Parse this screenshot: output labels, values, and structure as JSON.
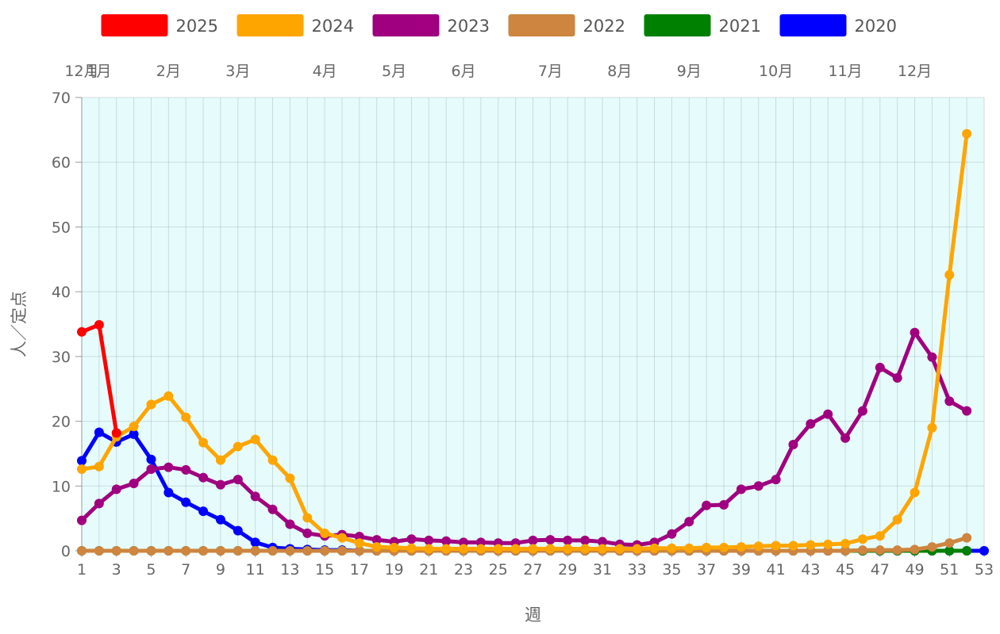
{
  "chart_data": {
    "type": "line",
    "xlabel": "週",
    "ylabel": "人／定点",
    "xlim": [
      1,
      53
    ],
    "ylim": [
      0,
      70
    ],
    "y_ticks": [
      "0",
      "10",
      "20",
      "30",
      "40",
      "50",
      "60",
      "70"
    ],
    "x_ticks": [
      "1",
      "3",
      "5",
      "7",
      "9",
      "11",
      "13",
      "15",
      "17",
      "19",
      "21",
      "23",
      "25",
      "27",
      "29",
      "31",
      "33",
      "35",
      "37",
      "39",
      "41",
      "43",
      "45",
      "47",
      "49",
      "51",
      "53"
    ],
    "months": [
      {
        "label": "12月",
        "week": 1
      },
      {
        "label": "1月",
        "week": 2
      },
      {
        "label": "2月",
        "week": 6
      },
      {
        "label": "3月",
        "week": 10
      },
      {
        "label": "4月",
        "week": 15
      },
      {
        "label": "5月",
        "week": 19
      },
      {
        "label": "6月",
        "week": 23
      },
      {
        "label": "7月",
        "week": 28
      },
      {
        "label": "8月",
        "week": 32
      },
      {
        "label": "9月",
        "week": 36
      },
      {
        "label": "10月",
        "week": 41
      },
      {
        "label": "11月",
        "week": 45
      },
      {
        "label": "12月",
        "week": 49
      }
    ],
    "grid": true,
    "legend_position": "top",
    "plot_background": "#e6fcfc",
    "series": [
      {
        "name": "2025",
        "color": "#ff0000",
        "values": [
          33.8,
          34.9,
          18.2
        ]
      },
      {
        "name": "2024",
        "color": "#ffa500",
        "values": [
          12.6,
          13.0,
          17.6,
          19.2,
          22.6,
          23.9,
          20.6,
          16.7,
          14.0,
          16.1,
          17.2,
          14.0,
          11.2,
          5.1,
          2.7,
          2.0,
          1.2,
          0.6,
          0.5,
          0.4,
          0.3,
          0.3,
          0.3,
          0.3,
          0.3,
          0.3,
          0.3,
          0.3,
          0.3,
          0.3,
          0.3,
          0.3,
          0.3,
          0.4,
          0.4,
          0.4,
          0.5,
          0.5,
          0.6,
          0.7,
          0.8,
          0.8,
          0.9,
          1.0,
          1.1,
          1.8,
          2.3,
          4.8,
          9.0,
          19.0,
          42.6,
          64.4
        ]
      },
      {
        "name": "2023",
        "color": "#a0007f",
        "values": [
          4.7,
          7.3,
          9.5,
          10.4,
          12.6,
          12.9,
          12.5,
          11.3,
          10.2,
          11.0,
          8.4,
          6.4,
          4.1,
          2.7,
          2.3,
          2.5,
          2.2,
          1.7,
          1.4,
          1.8,
          1.6,
          1.5,
          1.3,
          1.3,
          1.2,
          1.2,
          1.6,
          1.7,
          1.6,
          1.6,
          1.4,
          1.0,
          0.9,
          1.3,
          2.6,
          4.5,
          7.0,
          7.1,
          9.5,
          10.0,
          11.0,
          16.4,
          19.6,
          21.1,
          17.4,
          21.6,
          28.3,
          26.7,
          33.7,
          29.9,
          23.1,
          21.6
        ]
      },
      {
        "name": "2022",
        "color": "#cd853f",
        "values": [
          0,
          0,
          0,
          0,
          0,
          0,
          0,
          0,
          0,
          0,
          0,
          0,
          0,
          0,
          0,
          0,
          0,
          0,
          0,
          0,
          0,
          0,
          0,
          0,
          0,
          0,
          0,
          0,
          0,
          0,
          0,
          0,
          0,
          0,
          0,
          0,
          0,
          0,
          0,
          0,
          0,
          0,
          0,
          0,
          0,
          0.1,
          0.1,
          0.1,
          0.2,
          0.6,
          1.2,
          2.0
        ]
      },
      {
        "name": "2021",
        "color": "#008000",
        "values": [
          0,
          0,
          0,
          0,
          0,
          0,
          0,
          0,
          0,
          0,
          0,
          0,
          0,
          0,
          0,
          0,
          0,
          0,
          0,
          0,
          0,
          0,
          0,
          0,
          0,
          0,
          0,
          0,
          0,
          0,
          0,
          0,
          0,
          0,
          0,
          0,
          0,
          0,
          0,
          0,
          0,
          0,
          0,
          0,
          0,
          0,
          0,
          0,
          0,
          0,
          0,
          0
        ]
      },
      {
        "name": "2020",
        "color": "#0000ff",
        "values": [
          13.9,
          18.3,
          16.8,
          18.0,
          14.1,
          9.0,
          7.5,
          6.1,
          4.8,
          3.1,
          1.3,
          0.5,
          0.3,
          0.2,
          0.1,
          0.1,
          0,
          0,
          0,
          0,
          0,
          0,
          0,
          0,
          0,
          0,
          0,
          0,
          0,
          0,
          0,
          0,
          0,
          0,
          0,
          0,
          0,
          0,
          0,
          0,
          0,
          0,
          0,
          0,
          0,
          0,
          0,
          0,
          0,
          0,
          0,
          0,
          0
        ]
      }
    ]
  }
}
